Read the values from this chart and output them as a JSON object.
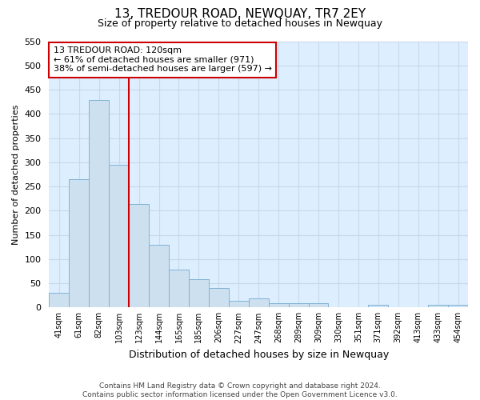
{
  "title": "13, TREDOUR ROAD, NEWQUAY, TR7 2EY",
  "subtitle": "Size of property relative to detached houses in Newquay",
  "xlabel": "Distribution of detached houses by size in Newquay",
  "ylabel": "Number of detached properties",
  "footer_line1": "Contains HM Land Registry data © Crown copyright and database right 2024.",
  "footer_line2": "Contains public sector information licensed under the Open Government Licence v3.0.",
  "bar_labels": [
    "41sqm",
    "61sqm",
    "82sqm",
    "103sqm",
    "123sqm",
    "144sqm",
    "165sqm",
    "185sqm",
    "206sqm",
    "227sqm",
    "247sqm",
    "268sqm",
    "289sqm",
    "309sqm",
    "330sqm",
    "351sqm",
    "371sqm",
    "392sqm",
    "413sqm",
    "433sqm",
    "454sqm"
  ],
  "bar_values": [
    30,
    265,
    428,
    295,
    214,
    130,
    78,
    58,
    40,
    14,
    18,
    8,
    8,
    8,
    0,
    0,
    5,
    0,
    0,
    5,
    5
  ],
  "bar_color": "#cce0f0",
  "bar_edge_color": "#7fb3d3",
  "ylim": [
    0,
    550
  ],
  "yticks": [
    0,
    50,
    100,
    150,
    200,
    250,
    300,
    350,
    400,
    450,
    500,
    550
  ],
  "vline_color": "#cc0000",
  "annotation_title": "13 TREDOUR ROAD: 120sqm",
  "annotation_line1": "← 61% of detached houses are smaller (971)",
  "annotation_line2": "38% of semi-detached houses are larger (597) →",
  "annotation_box_color": "#ffffff",
  "annotation_box_edge": "#cc0000",
  "background_color": "#ffffff",
  "grid_color": "#c8d8e8"
}
